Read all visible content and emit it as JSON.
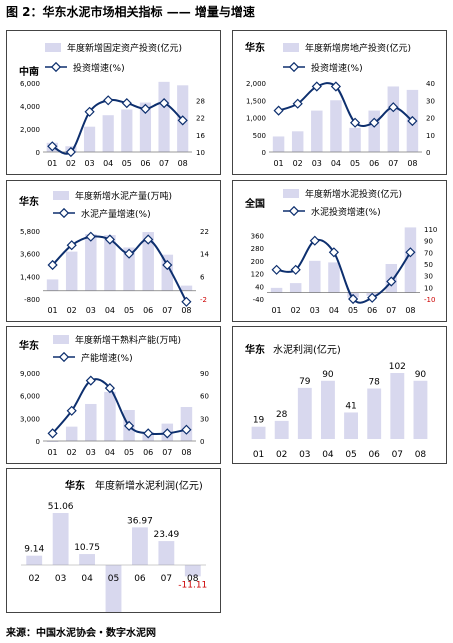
{
  "title": "图 2：华东水泥市场相关指标  ——  增量与增速",
  "footer": "来源：中国水泥协会・数字水泥网",
  "colors": {
    "bar": "#d8d8ee",
    "line": "#0d2f6e",
    "negative": "#cc0000"
  },
  "chart_data": [
    {
      "type": "bar+line",
      "region": "中南",
      "legend_bar": "年度新增固定资产投资(亿元)",
      "legend_line": "投资增速(%)",
      "categories": [
        "01",
        "02",
        "03",
        "04",
        "05",
        "06",
        "07",
        "08"
      ],
      "bar_values": [
        800,
        500,
        2200,
        3200,
        3700,
        4300,
        6100,
        5800
      ],
      "line_values": [
        12,
        10,
        24,
        28,
        27,
        25,
        27,
        21
      ],
      "y_left": {
        "min": 0,
        "max": 6000,
        "ticks": [
          "0",
          "2,000",
          "4,000",
          "6,000"
        ]
      },
      "y_right": {
        "min": 10,
        "max": 34,
        "ticks": [
          "10",
          "16",
          "22",
          "28"
        ]
      }
    },
    {
      "type": "bar+line",
      "region": "华东",
      "legend_bar": "年度新增房地产投资(亿元)",
      "legend_line": "投资增速(%)",
      "categories": [
        "01",
        "02",
        "03",
        "04",
        "05",
        "06",
        "07",
        "08"
      ],
      "bar_values": [
        450,
        600,
        1200,
        1500,
        700,
        1200,
        1900,
        1800
      ],
      "line_values": [
        24,
        28,
        38,
        38,
        17,
        17,
        26,
        18
      ],
      "y_left": {
        "min": 0,
        "max": 2000,
        "ticks": [
          "0",
          "500",
          "1,000",
          "1,500",
          "2,000"
        ]
      },
      "y_right": {
        "min": 0,
        "max": 40,
        "ticks": [
          "0",
          "10",
          "20",
          "30",
          "40"
        ]
      }
    },
    {
      "type": "bar+line",
      "region": "华东",
      "legend_bar": "年度新增水泥产量(万吨)",
      "legend_line": "水泥产量增速(%)",
      "categories": [
        "01",
        "02",
        "03",
        "04",
        "05",
        "06",
        "07",
        "08"
      ],
      "bar_values": [
        1100,
        3800,
        5500,
        5400,
        4200,
        5700,
        3500,
        500
      ],
      "line_values": [
        10,
        17,
        20,
        19,
        14,
        19,
        10,
        -3
      ],
      "y_left": {
        "min": -800,
        "max": 5800,
        "ticks": [
          "-800",
          "1,400",
          "3,600",
          "5,800"
        ]
      },
      "y_right": {
        "min": -2,
        "max": 22,
        "ticks": [
          "-2",
          "6",
          "14",
          "22"
        ]
      }
    },
    {
      "type": "bar+line",
      "region": "全国",
      "legend_bar": "年度新增水泥投资(亿元)",
      "legend_line": "水泥投资增速(%)",
      "categories": [
        "01",
        "02",
        "03",
        "04",
        "05",
        "06",
        "07",
        "08"
      ],
      "bar_values": [
        30,
        60,
        200,
        190,
        -30,
        -20,
        180,
        410
      ],
      "line_values": [
        40,
        40,
        90,
        70,
        -10,
        -8,
        20,
        70
      ],
      "y_left": {
        "min": -40,
        "max": 400,
        "ticks": [
          "-40",
          "40",
          "120",
          "200",
          "280",
          "360"
        ]
      },
      "y_right": {
        "min": -10,
        "max": 110,
        "ticks": [
          "-10",
          "10",
          "30",
          "50",
          "70",
          "90",
          "110"
        ]
      }
    },
    {
      "type": "bar+line",
      "region": "华东",
      "legend_bar": "年度新增干熟料产能(万吨)",
      "legend_line": "产能增速(%)",
      "categories": [
        "01",
        "02",
        "03",
        "04",
        "05",
        "06",
        "07",
        "08"
      ],
      "bar_values": [
        0,
        1900,
        4900,
        6500,
        4100,
        1200,
        2300,
        4500
      ],
      "line_values": [
        10,
        40,
        80,
        70,
        20,
        10,
        10,
        15
      ],
      "y_left": {
        "min": 0,
        "max": 9000,
        "ticks": [
          "0",
          "3,000",
          "6,000",
          "9,000"
        ]
      },
      "y_right": {
        "min": 0,
        "max": 90,
        "ticks": [
          "0",
          "30",
          "60",
          "90"
        ]
      }
    },
    {
      "type": "bar",
      "region": "华东",
      "heading": "水泥利润(亿元)",
      "categories": [
        "01",
        "02",
        "03",
        "04",
        "05",
        "06",
        "07",
        "08"
      ],
      "values": [
        19,
        28,
        79,
        90,
        41,
        78,
        102,
        90
      ],
      "labels": [
        "19",
        "28",
        "79",
        "90",
        "41",
        "78",
        "102",
        "90"
      ]
    },
    {
      "type": "bar",
      "region": "华东",
      "heading": "年度新增水泥利润(亿元)",
      "categories": [
        "02",
        "03",
        "04",
        "05",
        "06",
        "07",
        "08"
      ],
      "values": [
        9.14,
        51.06,
        10.75,
        -48.49,
        36.97,
        23.49,
        -11.11
      ],
      "labels": [
        "9.14",
        "51.06",
        "10.75",
        "-48.49",
        "36.97",
        "23.49",
        "-11.11"
      ]
    }
  ]
}
